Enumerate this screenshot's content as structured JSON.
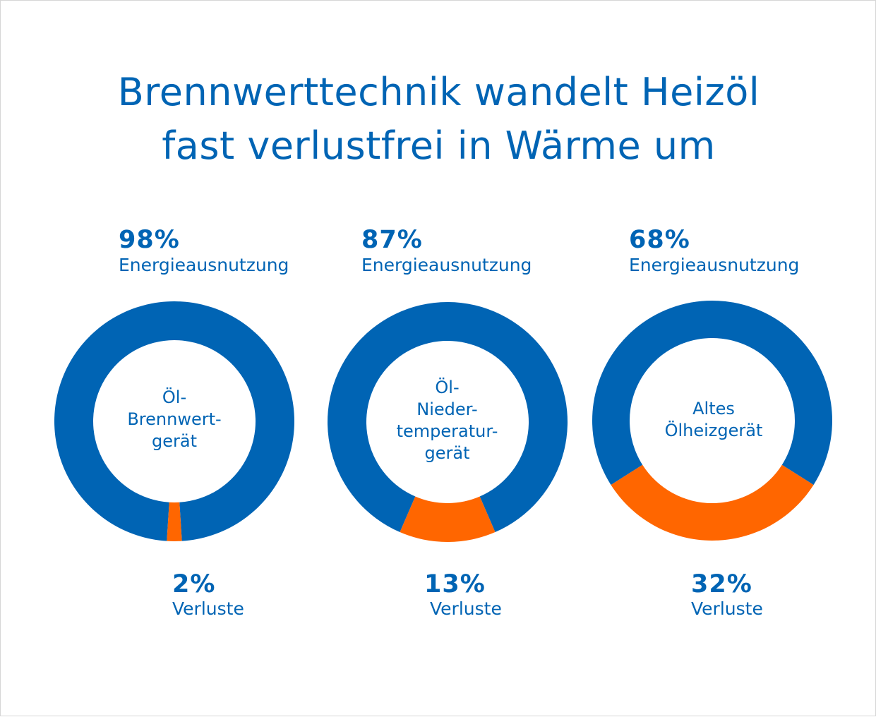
{
  "title_lines": [
    "Brennwerttechnik wandelt Heizöl",
    "fast verlustfrei in Wärme um"
  ],
  "colors": {
    "usage": "#0064b4",
    "loss": "#ff6600",
    "text": "#0064b4"
  },
  "chart_data": [
    {
      "type": "pie",
      "center_label_lines": [
        "Öl-",
        "Brennwert-",
        "gerät"
      ],
      "slices": [
        {
          "label": "Energieausnutzung",
          "value": 98,
          "value_label": "98%"
        },
        {
          "label": "Verluste",
          "value": 2,
          "value_label": "2%"
        }
      ]
    },
    {
      "type": "pie",
      "center_label_lines": [
        "Öl-",
        "Nieder-",
        "temperatur-",
        "gerät"
      ],
      "slices": [
        {
          "label": "Energieausnutzung",
          "value": 87,
          "value_label": "87%"
        },
        {
          "label": "Verluste",
          "value": 13,
          "value_label": "13%"
        }
      ]
    },
    {
      "type": "pie",
      "center_label_lines": [
        "Altes",
        "Ölheizgerät"
      ],
      "slices": [
        {
          "label": "Energieausnutzung",
          "value": 68,
          "value_label": "68%"
        },
        {
          "label": "Verluste",
          "value": 32,
          "value_label": "32%"
        }
      ]
    }
  ]
}
